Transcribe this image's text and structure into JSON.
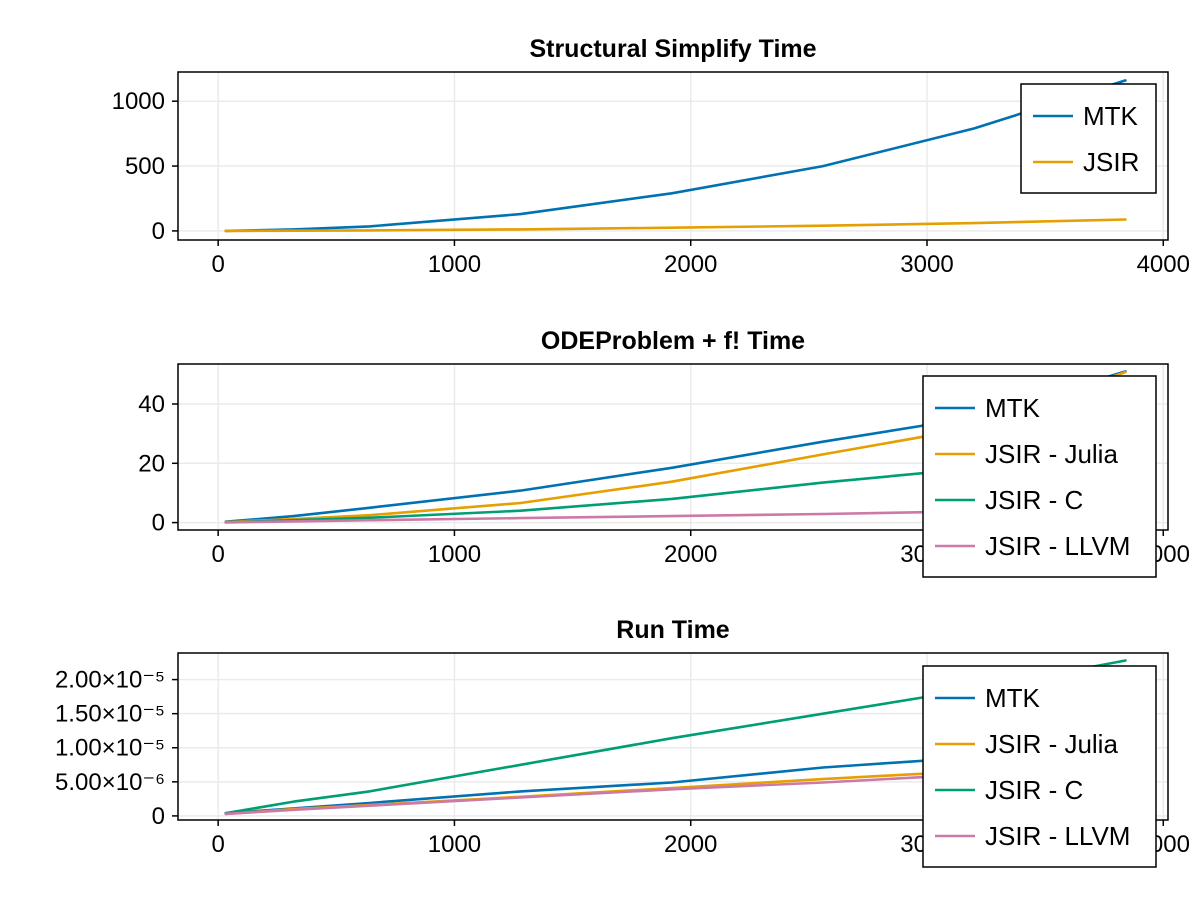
{
  "chart_data": [
    {
      "type": "line",
      "title": "Structural Simplify Time",
      "x": [
        32,
        320,
        640,
        1280,
        1920,
        2560,
        3200,
        3840
      ],
      "xlim": [
        -170,
        4020
      ],
      "ylim": [
        -70,
        1225
      ],
      "xticks": [
        0,
        1000,
        2000,
        3000,
        4000
      ],
      "xtick_labels": [
        "0",
        "1000",
        "2000",
        "3000",
        "4000"
      ],
      "yticks": [
        0,
        500,
        1000
      ],
      "ytick_labels": [
        "0",
        "500",
        "1000"
      ],
      "grid": true,
      "legend_position": "top-right",
      "series": [
        {
          "name": "MTK",
          "color": "#0072b2",
          "values": [
            0.5,
            12,
            35,
            130,
            290,
            500,
            790,
            1160
          ]
        },
        {
          "name": "JSIR",
          "color": "#e69f00",
          "values": [
            0.2,
            2,
            4,
            12,
            25,
            40,
            60,
            88
          ]
        }
      ]
    },
    {
      "type": "line",
      "title": "ODEProblem + f! Time",
      "x": [
        32,
        320,
        640,
        1280,
        1920,
        2560,
        3200,
        3840
      ],
      "xlim": [
        -170,
        4020
      ],
      "ylim": [
        -2.5,
        53.5
      ],
      "xticks": [
        0,
        1000,
        2000,
        3000,
        4000
      ],
      "xtick_labels": [
        "0",
        "1000",
        "2000",
        "3000",
        "4000"
      ],
      "yticks": [
        0,
        20,
        40
      ],
      "ytick_labels": [
        "0",
        "20",
        "40"
      ],
      "grid": true,
      "legend_position": "top-right",
      "series": [
        {
          "name": "MTK",
          "color": "#0072b2",
          "values": [
            0.3,
            2.2,
            5,
            10.8,
            18.5,
            27.3,
            35.5,
            51
          ]
        },
        {
          "name": "JSIR - Julia",
          "color": "#e69f00",
          "values": [
            0.2,
            1.2,
            2.5,
            6.6,
            13.8,
            23,
            32,
            50.8
          ]
        },
        {
          "name": "JSIR - C",
          "color": "#009e73",
          "values": [
            0.1,
            0.8,
            1.6,
            4,
            8,
            13.5,
            18.3,
            23.5
          ]
        },
        {
          "name": "JSIR - LLVM",
          "color": "#cc79a7",
          "values": [
            0.05,
            0.4,
            0.8,
            1.5,
            2.2,
            2.9,
            3.8,
            4.6
          ]
        }
      ]
    },
    {
      "type": "line",
      "title": "Run Time",
      "x": [
        32,
        320,
        640,
        1280,
        1920,
        2560,
        3200,
        3840
      ],
      "xlim": [
        -170,
        4020
      ],
      "ylim": [
        -6e-07,
        2.39e-05
      ],
      "xticks": [
        0,
        1000,
        2000,
        3000,
        4000
      ],
      "xtick_labels": [
        "0",
        "1000",
        "2000",
        "3000",
        "4000"
      ],
      "yticks": [
        0,
        5e-06,
        1e-05,
        1.5e-05,
        2e-05
      ],
      "ytick_labels": [
        "0",
        "5.00×10⁻⁶",
        "1.00×10⁻⁵",
        "1.50×10⁻⁵",
        "2.00×10⁻⁵"
      ],
      "grid": true,
      "legend_position": "top-right",
      "series": [
        {
          "name": "MTK",
          "color": "#0072b2",
          "values": [
            4e-07,
            1.1e-06,
            1.9e-06,
            3.6e-06,
            4.9e-06,
            7.1e-06,
            8.6e-06,
            1.02e-05
          ]
        },
        {
          "name": "JSIR - Julia",
          "color": "#e69f00",
          "values": [
            3e-07,
            1e-06,
            1.6e-06,
            2.8e-06,
            4.1e-06,
            5.4e-06,
            6.6e-06,
            7.9e-06
          ]
        },
        {
          "name": "JSIR - C",
          "color": "#009e73",
          "values": [
            4e-07,
            2.1e-06,
            3.6e-06,
            7.5e-06,
            1.14e-05,
            1.5e-05,
            1.86e-05,
            2.28e-05
          ]
        },
        {
          "name": "JSIR - LLVM",
          "color": "#cc79a7",
          "values": [
            3e-07,
            9e-07,
            1.5e-06,
            2.7e-06,
            3.9e-06,
            4.9e-06,
            6.1e-06,
            7.1e-06
          ]
        }
      ]
    }
  ]
}
